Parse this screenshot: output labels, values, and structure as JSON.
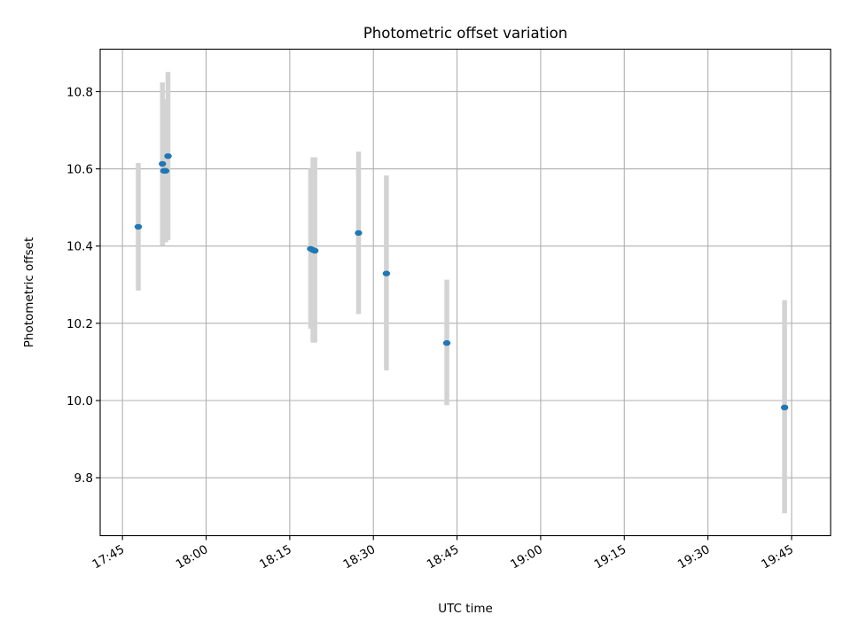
{
  "chart_data": {
    "type": "scatter",
    "title": "Photometric offset variation",
    "xlabel": "UTC time",
    "ylabel": "Photometric offset",
    "xlim": [
      "17:41",
      "19:52"
    ],
    "ylim": [
      9.65,
      10.91
    ],
    "x_ticks": [
      "17:45",
      "18:00",
      "18:15",
      "18:30",
      "18:45",
      "19:00",
      "19:15",
      "19:30",
      "19:45"
    ],
    "y_ticks": [
      9.8,
      10.0,
      10.2,
      10.4,
      10.6,
      10.8
    ],
    "y_tick_labels": [
      "9.8",
      "10.0",
      "10.2",
      "10.4",
      "10.6",
      "10.8"
    ],
    "grid": true,
    "legend": "none",
    "series": [
      {
        "marker_color": "#1f77b4",
        "errorbar_color": "#d3d3d3",
        "points": [
          {
            "t": "17:47:50",
            "y": 10.45,
            "ylow": 10.285,
            "yhigh": 10.615
          },
          {
            "t": "17:52:10",
            "y": 10.613,
            "ylow": 10.402,
            "yhigh": 10.824
          },
          {
            "t": "17:52:25",
            "y": 10.595,
            "ylow": 10.41,
            "yhigh": 10.78
          },
          {
            "t": "17:52:45",
            "y": 10.595,
            "ylow": 10.41,
            "yhigh": 10.78
          },
          {
            "t": "17:53:10",
            "y": 10.633,
            "ylow": 10.415,
            "yhigh": 10.851
          },
          {
            "t": "18:18:45",
            "y": 10.393,
            "ylow": 10.186,
            "yhigh": 10.6
          },
          {
            "t": "18:19:10",
            "y": 10.39,
            "ylow": 10.15,
            "yhigh": 10.63
          },
          {
            "t": "18:19:30",
            "y": 10.388,
            "ylow": 10.15,
            "yhigh": 10.63
          },
          {
            "t": "18:27:20",
            "y": 10.434,
            "ylow": 10.224,
            "yhigh": 10.645
          },
          {
            "t": "18:32:20",
            "y": 10.329,
            "ylow": 10.078,
            "yhigh": 10.583
          },
          {
            "t": "18:43:10",
            "y": 10.149,
            "ylow": 9.988,
            "yhigh": 10.313
          },
          {
            "t": "19:43:45",
            "y": 9.982,
            "ylow": 9.708,
            "yhigh": 10.26
          }
        ]
      }
    ]
  }
}
